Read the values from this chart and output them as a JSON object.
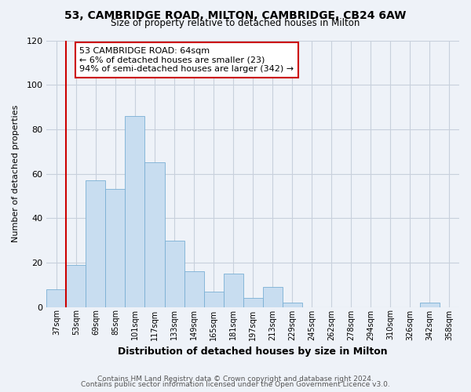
{
  "title": "53, CAMBRIDGE ROAD, MILTON, CAMBRIDGE, CB24 6AW",
  "subtitle": "Size of property relative to detached houses in Milton",
  "xlabel": "Distribution of detached houses by size in Milton",
  "ylabel": "Number of detached properties",
  "bar_color": "#c8ddf0",
  "bar_edge_color": "#7aafd4",
  "bin_labels": [
    "37sqm",
    "53sqm",
    "69sqm",
    "85sqm",
    "101sqm",
    "117sqm",
    "133sqm",
    "149sqm",
    "165sqm",
    "181sqm",
    "197sqm",
    "213sqm",
    "229sqm",
    "245sqm",
    "262sqm",
    "278sqm",
    "294sqm",
    "310sqm",
    "326sqm",
    "342sqm",
    "358sqm"
  ],
  "bar_heights": [
    8,
    19,
    57,
    53,
    86,
    65,
    30,
    16,
    7,
    15,
    4,
    9,
    2,
    0,
    0,
    0,
    0,
    0,
    0,
    2,
    0
  ],
  "ylim": [
    0,
    120
  ],
  "yticks": [
    0,
    20,
    40,
    60,
    80,
    100,
    120
  ],
  "property_line_x": 1.0,
  "property_line_color": "#cc0000",
  "annotation_title": "53 CAMBRIDGE ROAD: 64sqm",
  "annotation_line1": "← 6% of detached houses are smaller (23)",
  "annotation_line2": "94% of semi-detached houses are larger (342) →",
  "annotation_box_color": "#ffffff",
  "annotation_box_edge": "#cc0000",
  "footer_line1": "Contains HM Land Registry data © Crown copyright and database right 2024.",
  "footer_line2": "Contains public sector information licensed under the Open Government Licence v3.0.",
  "background_color": "#eef2f8",
  "plot_bg_color": "#eef2f8",
  "grid_color": "#c8d0dc"
}
